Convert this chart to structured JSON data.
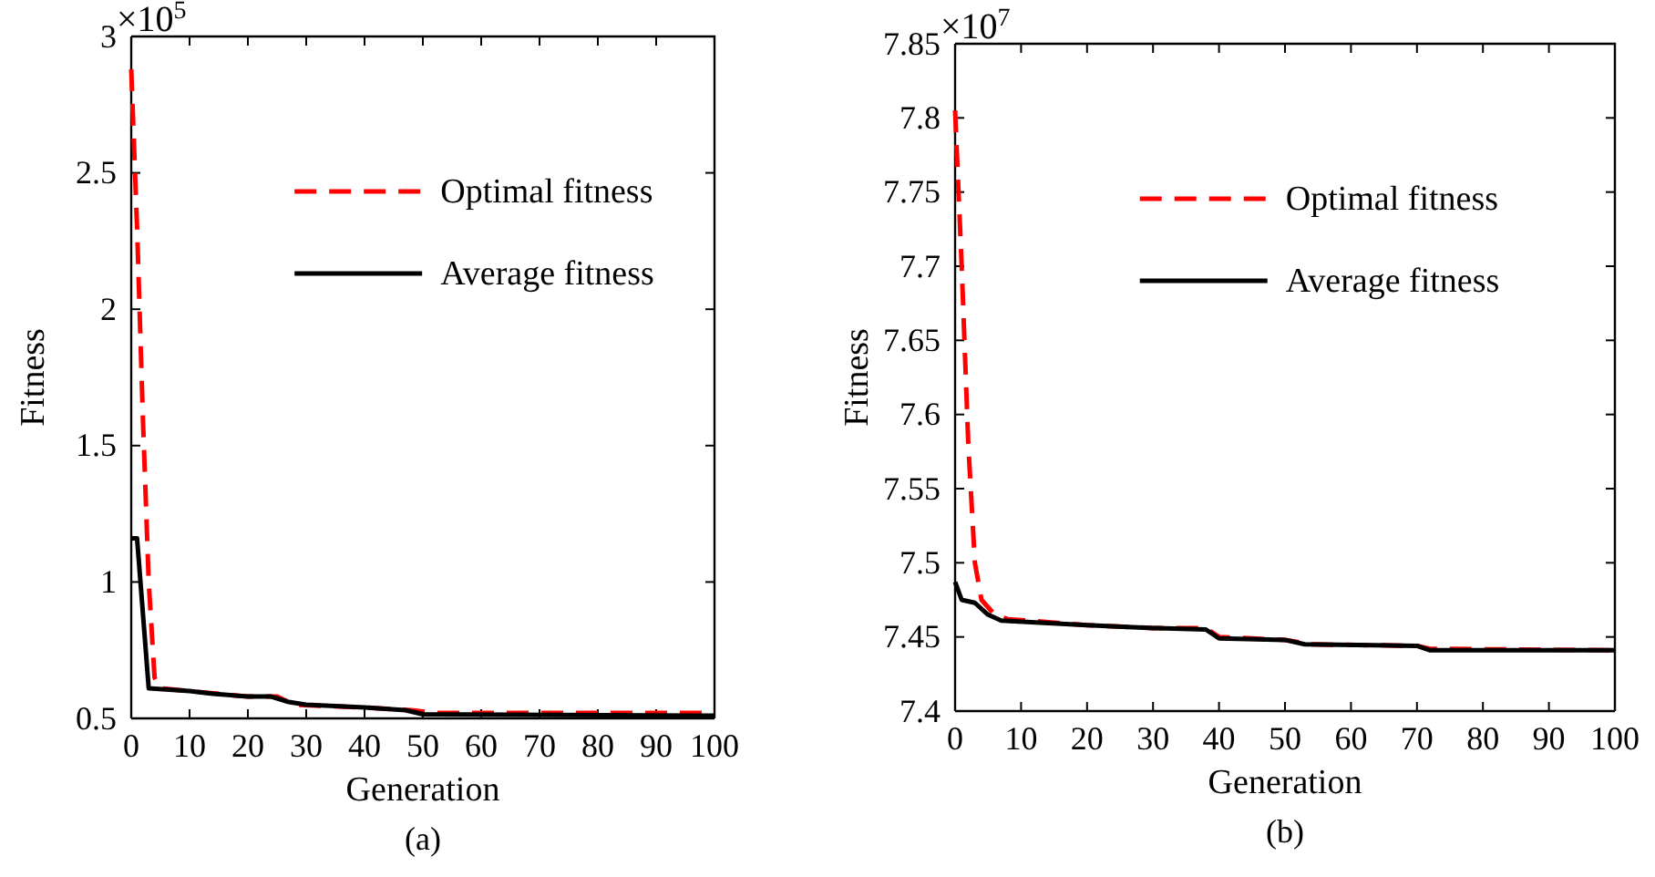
{
  "chart_data": [
    {
      "type": "line",
      "xlabel": "Generation",
      "ylabel": "Fitness",
      "xlim": [
        0,
        100
      ],
      "xticks": [
        0,
        10,
        20,
        30,
        40,
        50,
        60,
        70,
        80,
        90,
        100
      ],
      "ylim": [
        0.5,
        3
      ],
      "yticks": [
        0.5,
        1,
        1.5,
        2,
        2.5,
        3
      ],
      "grid": false,
      "legend": "top right",
      "annotations": [
        "×10$^{5}$",
        "(a)"
      ],
      "series": [
        {
          "name": "Optimal fitness",
          "color": "#ff0000",
          "line_style": "dashed",
          "x": [
            0,
            1,
            2,
            3,
            4,
            5,
            10,
            20,
            25,
            28,
            40,
            48,
            52,
            100
          ],
          "values": [
            2.88,
            2.3,
            1.6,
            1.0,
            0.65,
            0.61,
            0.6,
            0.58,
            0.58,
            0.55,
            0.54,
            0.53,
            0.52,
            0.52
          ]
        },
        {
          "name": "Average fitness",
          "color": "#000000",
          "line_style": "solid",
          "x": [
            0,
            1,
            3,
            10,
            14,
            20,
            24,
            27,
            30,
            40,
            47,
            50,
            100
          ],
          "values": [
            1.16,
            1.16,
            0.61,
            0.6,
            0.59,
            0.58,
            0.58,
            0.56,
            0.55,
            0.54,
            0.53,
            0.515,
            0.51
          ]
        }
      ]
    },
    {
      "type": "line",
      "xlabel": "Generation",
      "ylabel": "Fitness",
      "xlim": [
        0,
        100
      ],
      "xticks": [
        0,
        10,
        20,
        30,
        40,
        50,
        60,
        70,
        80,
        90,
        100
      ],
      "ylim": [
        7.4,
        7.85
      ],
      "yticks": [
        7.4,
        7.45,
        7.5,
        7.55,
        7.6,
        7.65,
        7.7,
        7.75,
        7.8,
        7.85
      ],
      "grid": false,
      "legend": "top right",
      "annotations": [
        "×10$^{7}$",
        "(b)"
      ],
      "series": [
        {
          "name": "Optimal fitness",
          "color": "#ff0000",
          "line_style": "dashed",
          "x": [
            0,
            1,
            2,
            3,
            4,
            6,
            8,
            20,
            30,
            38,
            40,
            50,
            54,
            70,
            72,
            100
          ],
          "values": [
            7.805,
            7.7,
            7.58,
            7.5,
            7.475,
            7.465,
            7.462,
            7.458,
            7.456,
            7.456,
            7.45,
            7.448,
            7.445,
            7.444,
            7.442,
            7.441
          ]
        },
        {
          "name": "Average fitness",
          "color": "#000000",
          "line_style": "solid",
          "x": [
            0,
            1,
            3,
            5,
            7,
            20,
            30,
            38,
            40,
            50,
            53,
            70,
            72,
            100
          ],
          "values": [
            7.487,
            7.475,
            7.473,
            7.465,
            7.461,
            7.458,
            7.456,
            7.455,
            7.449,
            7.448,
            7.445,
            7.444,
            7.441,
            7.441
          ]
        }
      ]
    }
  ]
}
